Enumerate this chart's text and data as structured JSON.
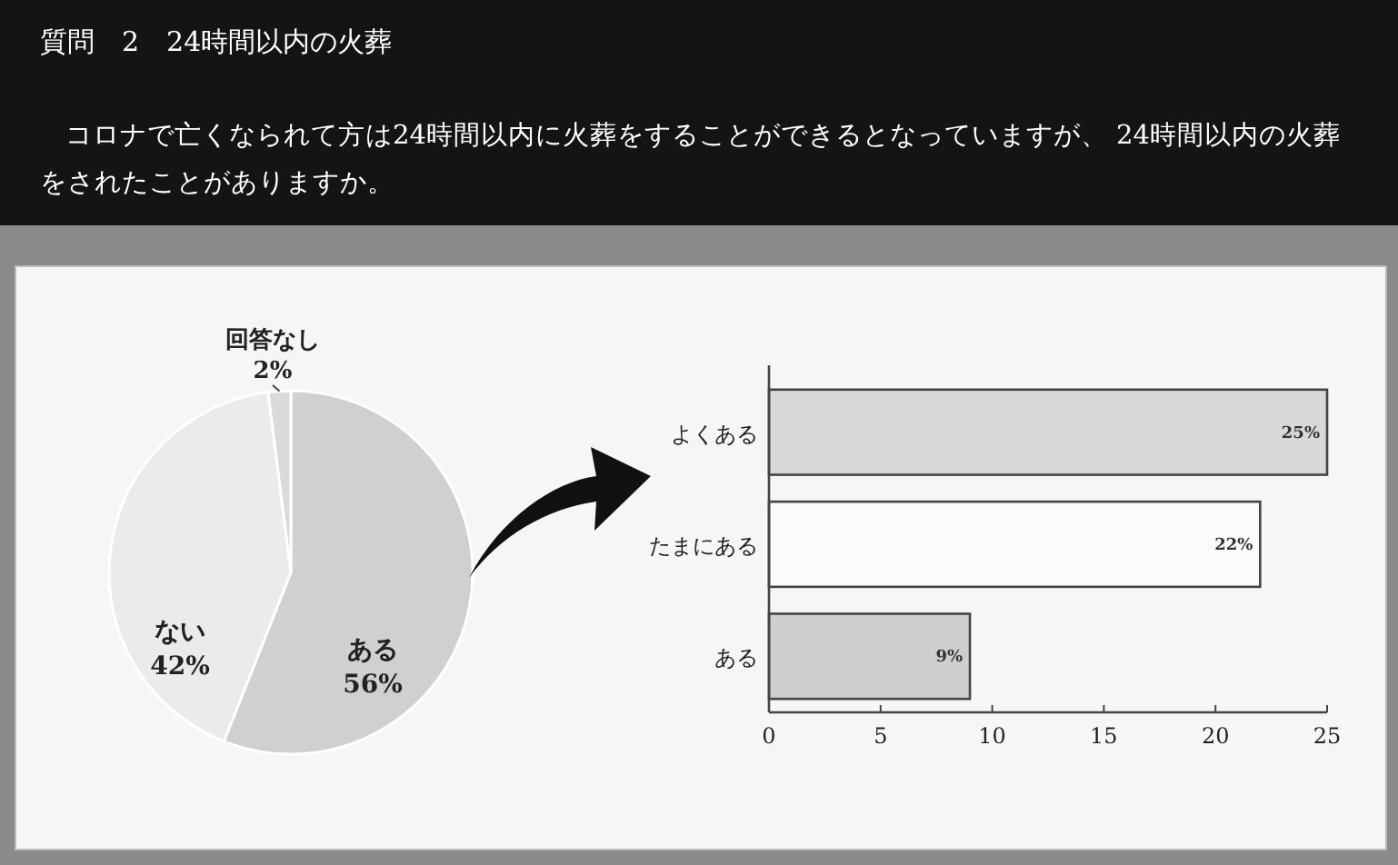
{
  "chart_data": [
    {
      "type": "pie",
      "title": "質問　2　24時間以内の火葬",
      "subtitle": "コロナで亡くなられて方は24時間以内に火葬をすることができるとなっていますが、 24時間以内の火葬をされたことがありますか。",
      "categories": [
        "ある",
        "ない",
        "回答なし"
      ],
      "values": [
        56,
        42,
        2
      ],
      "value_labels": [
        "56%",
        "42%",
        "2%"
      ],
      "colors": [
        "#d0d0d0",
        "#ebebeb",
        "#dadada"
      ]
    },
    {
      "type": "bar",
      "orientation": "horizontal",
      "categories": [
        "よくある",
        "たまにある",
        "ある"
      ],
      "values": [
        25,
        22,
        9
      ],
      "value_labels": [
        "25%",
        "22%",
        "9%"
      ],
      "colors": [
        "#d8d8d8",
        "#fbfbfb",
        "#cfcfcf"
      ],
      "xlim": [
        0,
        25
      ],
      "xticks": [
        0,
        5,
        10,
        15,
        20,
        25
      ],
      "grid": false
    }
  ]
}
